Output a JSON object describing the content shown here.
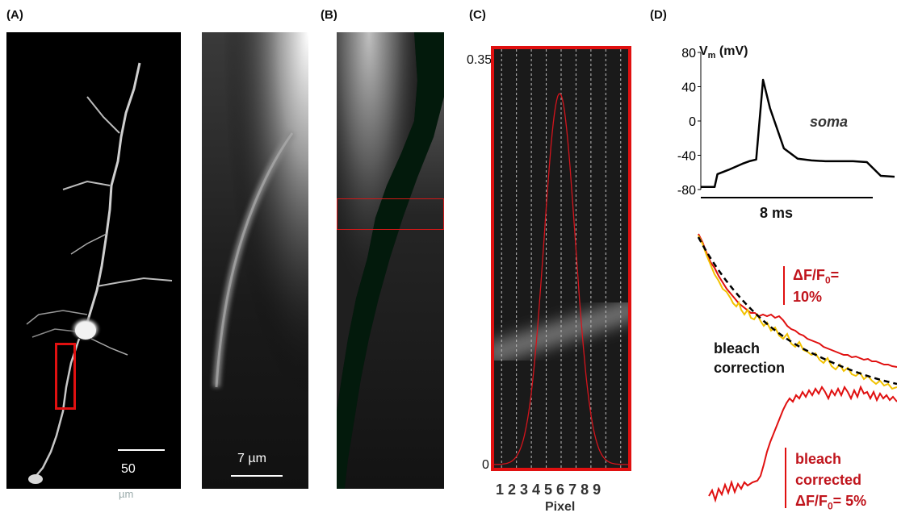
{
  "panels": {
    "a": {
      "label": "(A)",
      "scale_bar_1_value": "50",
      "scale_bar_1_unit": "µm",
      "scale_bar_2": "7 µm"
    },
    "b": {
      "label": "(B)"
    },
    "c": {
      "label": "(C)",
      "y_top": "0.35",
      "y_bottom": "0",
      "pixel_ticks": "1 2 3 4 5 6 7 8 9",
      "xlabel": "Pixel"
    },
    "d": {
      "label": "(D)",
      "ylabel_main": "V",
      "ylabel_sub": "m",
      "ylabel_unit": " (mV)",
      "y_ticks": [
        "80",
        "40",
        "0",
        "-40",
        "-80"
      ],
      "trace_label": "soma",
      "time_scale": "8 ms",
      "df_top_1": "ΔF/F",
      "df_top_sub": "0",
      "df_top_2": "=",
      "df_top_3": "10%",
      "bleach_1": "bleach",
      "bleach_2": "correction",
      "bc_1": "bleach",
      "bc_2": "corrected",
      "bc_3a": "ΔF/F",
      "bc_3sub": "0",
      "bc_3b": "= 5%"
    }
  },
  "colors": {
    "red": "#d4141c",
    "yellow": "#f2c200",
    "trace_black": "#000000"
  },
  "chart_data": {
    "type": "line",
    "title": "",
    "xlabel": "",
    "ylabel": "Vm (mV)",
    "ylim": [
      -80,
      80
    ],
    "yticks": [
      80,
      40,
      0,
      -40,
      -80
    ],
    "series": [
      {
        "name": "soma",
        "x": [
          0,
          1,
          1.2,
          2,
          3,
          3.5,
          4,
          4.5,
          5,
          6,
          7,
          8,
          9,
          10,
          11,
          12,
          13,
          14
        ],
        "values": [
          -77,
          -77,
          -62,
          -57,
          -50,
          -47,
          -45,
          48,
          15,
          -32,
          -44,
          -46,
          -47,
          -47,
          -47,
          -48,
          -64,
          -65
        ]
      }
    ]
  }
}
